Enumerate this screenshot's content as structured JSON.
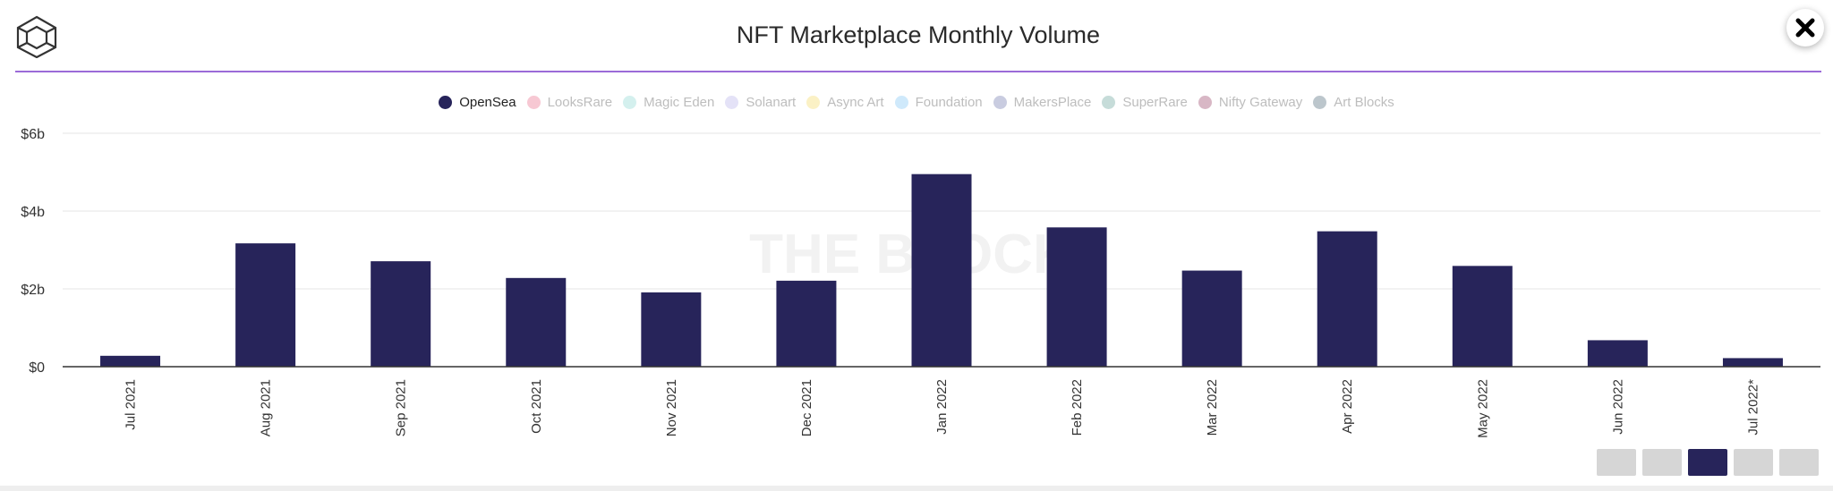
{
  "header": {
    "title": "NFT Marketplace Monthly Volume",
    "logo_icon": "the-block-cube-logo-icon",
    "close_icon": "close-icon"
  },
  "watermark": "THE BLOCK",
  "legend": [
    {
      "label": "OpenSea",
      "color": "#27245a",
      "active": true
    },
    {
      "label": "LooksRare",
      "color": "#f7c8d3",
      "active": false
    },
    {
      "label": "Magic Eden",
      "color": "#d4f0ee",
      "active": false
    },
    {
      "label": "Solanart",
      "color": "#e4e2f7",
      "active": false
    },
    {
      "label": "Async Art",
      "color": "#fbf1c5",
      "active": false
    },
    {
      "label": "Foundation",
      "color": "#cfe9fb",
      "active": false
    },
    {
      "label": "MakersPlace",
      "color": "#c9cce0",
      "active": false
    },
    {
      "label": "SuperRare",
      "color": "#c6dcd9",
      "active": false
    },
    {
      "label": "Nifty Gateway",
      "color": "#d8b7c5",
      "active": false
    },
    {
      "label": "Art Blocks",
      "color": "#bcc6cc",
      "active": false
    }
  ],
  "chart_data": {
    "type": "bar",
    "title": "NFT Marketplace Monthly Volume",
    "categories": [
      "Jul 2021",
      "Aug 2021",
      "Sep 2021",
      "Oct 2021",
      "Nov 2021",
      "Dec 2021",
      "Jan 2022",
      "Feb 2022",
      "Mar 2022",
      "Apr 2022",
      "May 2022",
      "Jun 2022",
      "Jul 2022*"
    ],
    "series": [
      {
        "name": "OpenSea",
        "color": "#27245a",
        "values": [
          0.28,
          3.17,
          2.71,
          2.28,
          1.91,
          2.21,
          4.95,
          3.58,
          2.47,
          3.48,
          2.59,
          0.68,
          0.22
        ]
      }
    ],
    "y_ticks": [
      {
        "value": 0,
        "label": "$0"
      },
      {
        "value": 2,
        "label": "$2b"
      },
      {
        "value": 4,
        "label": "$4b"
      },
      {
        "value": 6,
        "label": "$6b"
      }
    ],
    "ylim": [
      0,
      6
    ],
    "xlabel": "",
    "ylabel": "",
    "grid": true
  },
  "pager": {
    "count": 5,
    "active_index": 2
  }
}
